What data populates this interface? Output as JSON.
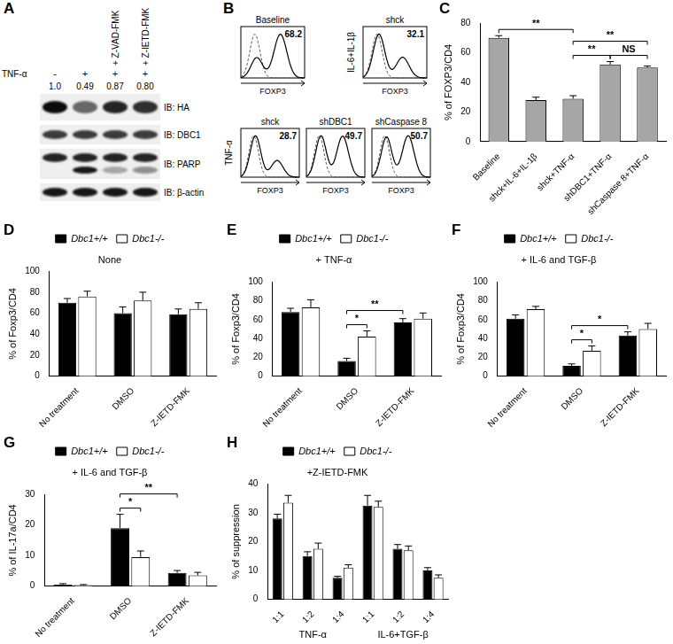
{
  "blot": {
    "letter": "A",
    "treatment_label": "TNF-α",
    "treatment": [
      "-",
      "+",
      "+",
      "+"
    ],
    "inhibitors": [
      null,
      null,
      "+ Z-VAD-FMK",
      "+ Z-IETD-FMK"
    ],
    "quantification": [
      "1.0",
      "0.49",
      "0.87",
      "0.80"
    ],
    "rows": [
      "IB: HA",
      "IB: DBC1",
      "IB: PARP",
      "IB: β-actin"
    ]
  },
  "histograms": {
    "letter": "B",
    "axis_label": "FOXP3",
    "rows": [
      {
        "panels": [
          {
            "title": "Baseline",
            "value": 68.2
          },
          {
            "title": "shck",
            "value": 32.1,
            "side_label": "IL-6+IL-1β"
          }
        ]
      },
      {
        "side_label": "TNF-α",
        "panels": [
          {
            "title": "shck",
            "value": 28.7
          },
          {
            "title": "shDBC1",
            "value": 49.7
          },
          {
            "title": "shCaspase 8",
            "value": 50.7
          }
        ]
      }
    ]
  },
  "chart_data": [
    {
      "letter": "C",
      "type": "bar",
      "y_label": "% of FOXP3/CD4",
      "categories": [
        "Baseline",
        "shck+IL-6+IL-1β",
        "shck+TNF-α",
        "shDBC1+TNF-α",
        "shCaspase 8+TNF-α"
      ],
      "values": [
        70,
        28,
        29,
        52,
        50
      ],
      "errors": [
        1.5,
        2,
        2,
        2,
        1
      ],
      "color": "#a6a6a6",
      "ylim": [
        0,
        80
      ],
      "yticks": [
        0,
        20,
        40,
        60,
        80
      ],
      "grid": false,
      "annotations": [
        {
          "text": "NS",
          "from": {
            "category": "shDBC1+TNF-α"
          },
          "to": {
            "category": "shCaspase 8+TNF-α"
          }
        },
        {
          "text": "**",
          "from": {
            "category": "shck+TNF-α"
          },
          "to": {
            "category": "shDBC1+TNF-α"
          }
        },
        {
          "text": "**",
          "from": {
            "category": "Baseline"
          },
          "to": {
            "category": "shck+TNF-α"
          }
        },
        {
          "text": "**",
          "from": {
            "category": "shck+TNF-α"
          },
          "to": {
            "category": "shCaspase 8+TNF-α"
          }
        }
      ]
    },
    {
      "letter": "D",
      "type": "bar",
      "title": "None",
      "y_label": "% of Foxp3/CD4",
      "categories": [
        "No treatment",
        "DMSO",
        "Z-IETD-FMK"
      ],
      "series": [
        {
          "name": "Dbc1+/+",
          "color": "#000000",
          "values": [
            70,
            60,
            59
          ],
          "errors": [
            4,
            6,
            5
          ]
        },
        {
          "name": "Dbc1-/-",
          "color": "#ffffff",
          "values": [
            76,
            72,
            64
          ],
          "errors": [
            5,
            8,
            6
          ]
        }
      ],
      "ylim": [
        0,
        100
      ],
      "yticks": [
        0,
        20,
        40,
        60,
        80,
        100
      ],
      "grid": false,
      "legend": "top"
    },
    {
      "letter": "E",
      "type": "bar",
      "title": "+ TNF-α",
      "y_label": "% of Foxp3/CD4",
      "categories": [
        "No treatment",
        "DMSO",
        "Z-IETD-FMK"
      ],
      "series": [
        {
          "name": "Dbc1+/+",
          "color": "#000000",
          "values": [
            68,
            16,
            57
          ],
          "errors": [
            4,
            3,
            4
          ]
        },
        {
          "name": "Dbc1-/-",
          "color": "#ffffff",
          "values": [
            73,
            42,
            61
          ],
          "errors": [
            8,
            6,
            6
          ]
        }
      ],
      "ylim": [
        0,
        100
      ],
      "yticks": [
        0,
        20,
        40,
        60,
        80,
        100
      ],
      "grid": false,
      "legend": "top",
      "annotations": [
        {
          "text": "*",
          "from": {
            "series": "Dbc1+/+",
            "category": "DMSO"
          },
          "to": {
            "series": "Dbc1-/-",
            "category": "DMSO"
          }
        },
        {
          "text": "**",
          "from": {
            "series": "Dbc1+/+",
            "category": "DMSO"
          },
          "to": {
            "series": "Dbc1+/+",
            "category": "Z-IETD-FMK"
          }
        }
      ]
    },
    {
      "letter": "F",
      "type": "bar",
      "title": "+ IL-6 and TGF-β",
      "y_label": "% of Foxp3/CD4",
      "categories": [
        "No treatment",
        "DMSO",
        "Z-IETD-FMK"
      ],
      "series": [
        {
          "name": "Dbc1+/+",
          "color": "#000000",
          "values": [
            61,
            11,
            43
          ],
          "errors": [
            4,
            2,
            4
          ]
        },
        {
          "name": "Dbc1-/-",
          "color": "#ffffff",
          "values": [
            71,
            27,
            50
          ],
          "errors": [
            3,
            5,
            6
          ]
        }
      ],
      "ylim": [
        0,
        100
      ],
      "yticks": [
        0,
        20,
        40,
        60,
        80,
        100
      ],
      "grid": false,
      "legend": "top",
      "annotations": [
        {
          "text": "*",
          "from": {
            "series": "Dbc1+/+",
            "category": "DMSO"
          },
          "to": {
            "series": "Dbc1-/-",
            "category": "DMSO"
          }
        },
        {
          "text": "*",
          "from": {
            "series": "Dbc1+/+",
            "category": "DMSO"
          },
          "to": {
            "series": "Dbc1+/+",
            "category": "Z-IETD-FMK"
          }
        }
      ]
    },
    {
      "letter": "G",
      "type": "bar",
      "title": "+ IL-6 and TGF-β",
      "y_label": "% of IL-17a/CD4",
      "categories": [
        "No treatment",
        "DMSO",
        "Z-IETD-FMK"
      ],
      "series": [
        {
          "name": "Dbc1+/+",
          "color": "#000000",
          "values": [
            0.5,
            19,
            4.3
          ],
          "errors": [
            0.3,
            4.5,
            0.8
          ]
        },
        {
          "name": "Dbc1-/-",
          "color": "#ffffff",
          "values": [
            0.3,
            9.5,
            3.5
          ],
          "errors": [
            0.2,
            2,
            1
          ]
        }
      ],
      "ylim": [
        0,
        30
      ],
      "yticks": [
        0,
        10,
        20,
        30
      ],
      "grid": false,
      "legend": "top",
      "annotations": [
        {
          "text": "*",
          "from": {
            "series": "Dbc1+/+",
            "category": "DMSO"
          },
          "to": {
            "series": "Dbc1-/-",
            "category": "DMSO"
          }
        },
        {
          "text": "**",
          "from": {
            "series": "Dbc1+/+",
            "category": "DMSO"
          },
          "to": {
            "series": "Dbc1+/+",
            "category": "Z-IETD-FMK"
          }
        }
      ]
    },
    {
      "letter": "H",
      "type": "bar",
      "title": "+Z-IETD-FMK",
      "y_label": "% of suppression",
      "categories": [
        "1:1",
        "1:2",
        "1:4",
        "1:1",
        "1:2",
        "1:4"
      ],
      "category_groups": [
        {
          "name": "TNF-α",
          "categories": [
            "1:1",
            "1:2",
            "1:4"
          ]
        },
        {
          "name": "IL-6+TGF-β",
          "categories": [
            "1:1",
            "1:2",
            "1:4"
          ]
        }
      ],
      "series": [
        {
          "name": "Dbc1+/+",
          "color": "#000000",
          "values": [
            28,
            15,
            7.5,
            32.5,
            17.5,
            10
          ],
          "errors": [
            1.5,
            1.5,
            0.5,
            3.5,
            1.5,
            1
          ]
        },
        {
          "name": "Dbc1-/-",
          "color": "#ffffff",
          "values": [
            33.5,
            17.5,
            11,
            32,
            17,
            7.5
          ],
          "errors": [
            2.5,
            2,
            1,
            2,
            1.5,
            1
          ]
        }
      ],
      "ylim": [
        0,
        40
      ],
      "yticks": [
        0,
        10,
        20,
        30,
        40
      ],
      "grid": false,
      "legend": "top"
    }
  ]
}
